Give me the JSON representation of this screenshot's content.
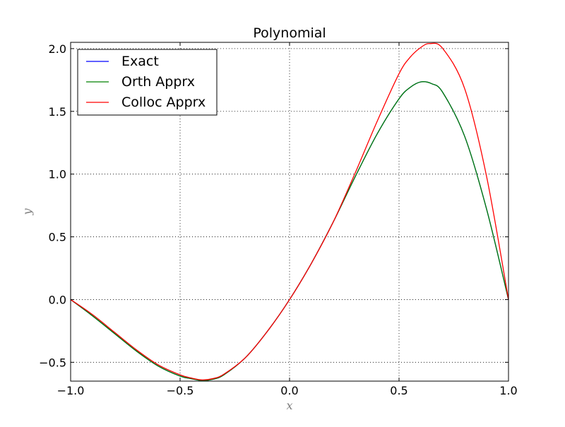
{
  "chart_data": {
    "type": "line",
    "title": "Polynomial",
    "xlabel": "x",
    "ylabel": "y",
    "xlim": [
      -1.0,
      1.0
    ],
    "ylim": [
      -0.65,
      2.05
    ],
    "x_ticks": [
      -1.0,
      -0.5,
      0.0,
      0.5,
      1.0
    ],
    "x_tick_labels": [
      "−1.0",
      "−0.5",
      "0.0",
      "0.5",
      "1.0"
    ],
    "y_ticks": [
      -0.5,
      0.0,
      0.5,
      1.0,
      1.5,
      2.0
    ],
    "y_tick_labels": [
      "−0.5",
      "0.0",
      "0.5",
      "1.0",
      "1.5",
      "2.0"
    ],
    "grid": true,
    "legend_position": "top-left",
    "series": [
      {
        "name": "Exact",
        "color": "#0000ff",
        "x": [
          -1.0,
          -0.9,
          -0.8,
          -0.7,
          -0.6,
          -0.5,
          -0.45,
          -0.4,
          -0.35,
          -0.3,
          -0.2,
          -0.1,
          0.0,
          0.1,
          0.2,
          0.3,
          0.4,
          0.5,
          0.55,
          0.6,
          0.65,
          0.7,
          0.8,
          0.9,
          1.0
        ],
        "y": [
          0.0,
          -0.13,
          -0.27,
          -0.41,
          -0.53,
          -0.61,
          -0.63,
          -0.645,
          -0.635,
          -0.6,
          -0.46,
          -0.25,
          0.0,
          0.29,
          0.62,
          0.98,
          1.32,
          1.6,
          1.69,
          1.735,
          1.72,
          1.65,
          1.3,
          0.72,
          0.0
        ]
      },
      {
        "name": "Orth Apprx",
        "color": "#008000",
        "x": [
          -1.0,
          -0.9,
          -0.8,
          -0.7,
          -0.6,
          -0.5,
          -0.45,
          -0.4,
          -0.35,
          -0.3,
          -0.2,
          -0.1,
          0.0,
          0.1,
          0.2,
          0.3,
          0.4,
          0.5,
          0.55,
          0.6,
          0.65,
          0.7,
          0.8,
          0.9,
          1.0
        ],
        "y": [
          0.0,
          -0.13,
          -0.27,
          -0.41,
          -0.53,
          -0.61,
          -0.63,
          -0.645,
          -0.635,
          -0.6,
          -0.46,
          -0.25,
          0.0,
          0.29,
          0.62,
          0.98,
          1.32,
          1.6,
          1.69,
          1.735,
          1.72,
          1.65,
          1.3,
          0.72,
          0.0
        ]
      },
      {
        "name": "Colloc Apprx",
        "color": "#ff0000",
        "x": [
          -1.0,
          -0.9,
          -0.8,
          -0.7,
          -0.6,
          -0.5,
          -0.45,
          -0.4,
          -0.35,
          -0.3,
          -0.2,
          -0.1,
          0.0,
          0.1,
          0.2,
          0.3,
          0.4,
          0.5,
          0.55,
          0.6,
          0.64,
          0.7,
          0.8,
          0.9,
          1.0
        ],
        "y": [
          0.0,
          -0.12,
          -0.26,
          -0.4,
          -0.52,
          -0.6,
          -0.625,
          -0.64,
          -0.63,
          -0.595,
          -0.46,
          -0.25,
          0.0,
          0.29,
          0.62,
          1.01,
          1.42,
          1.8,
          1.93,
          2.01,
          2.04,
          2.0,
          1.68,
          0.98,
          0.0
        ]
      }
    ]
  }
}
